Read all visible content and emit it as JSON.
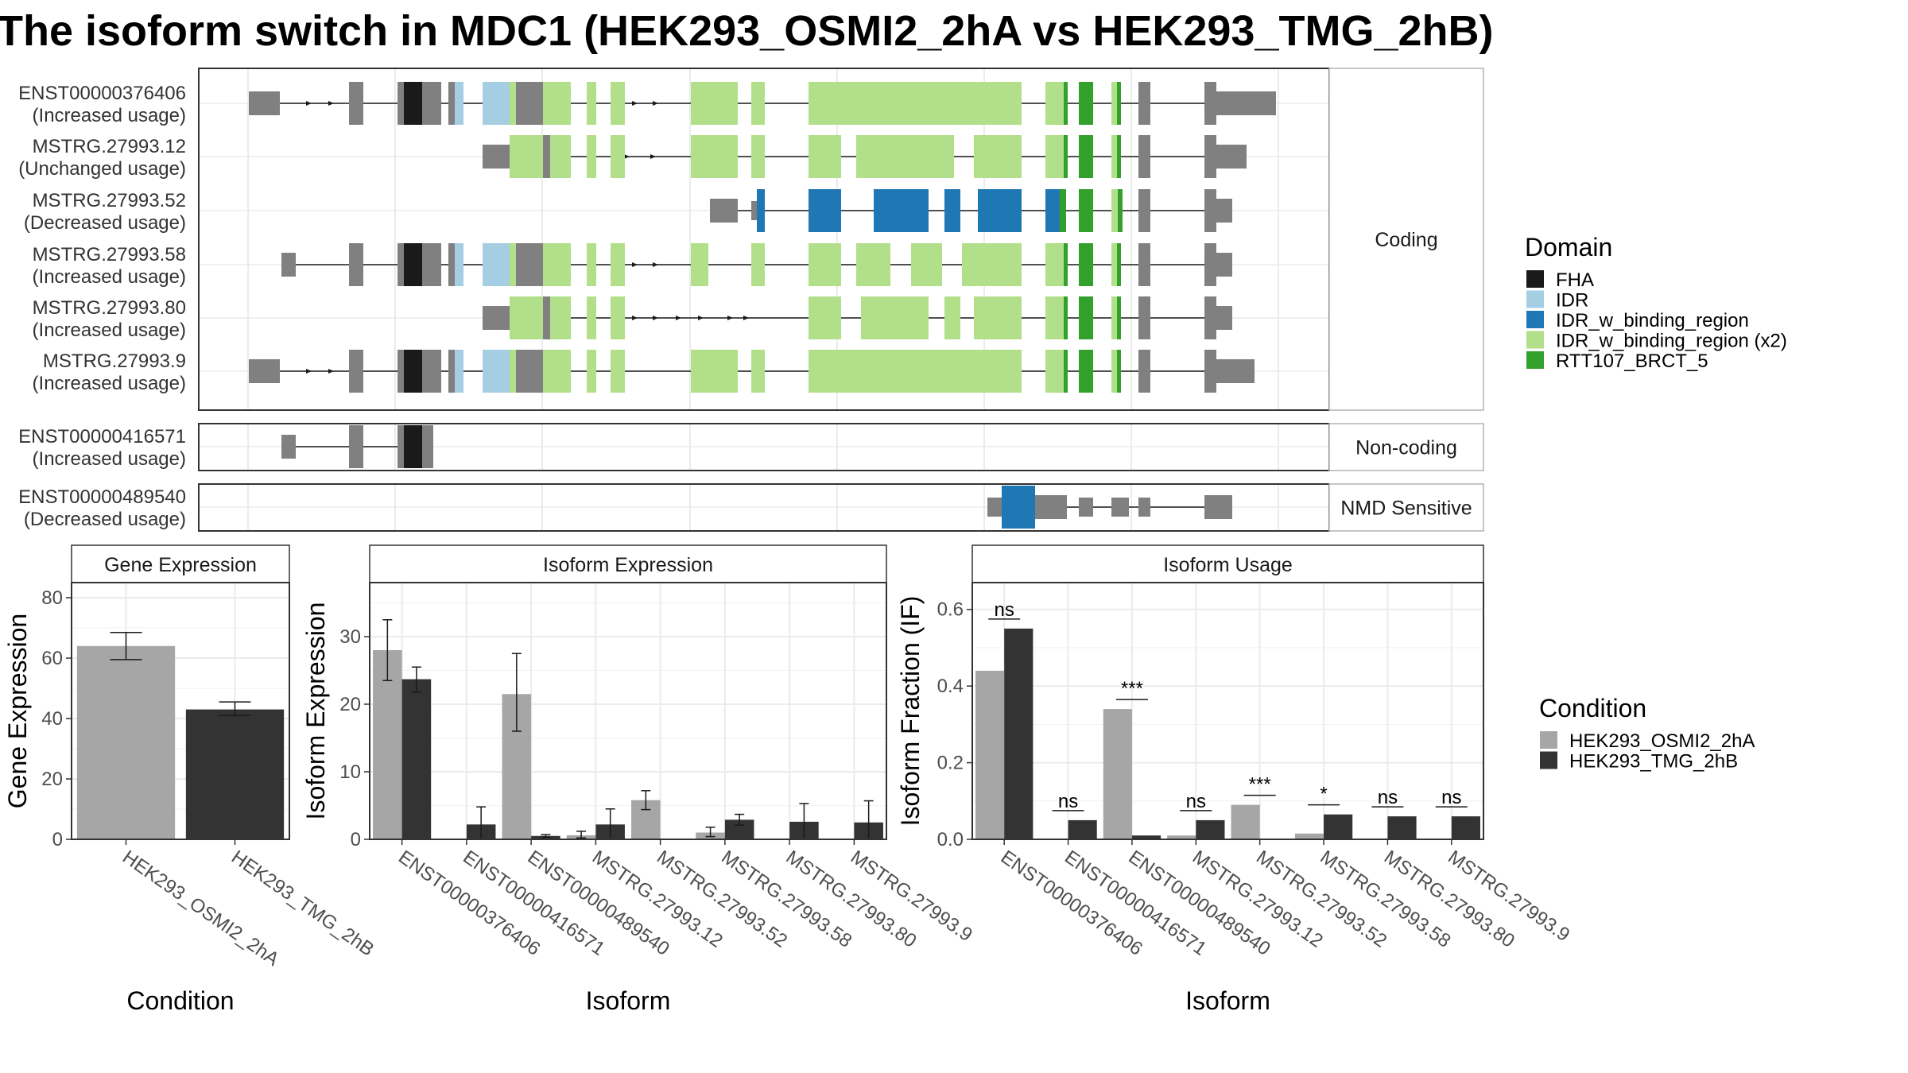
{
  "title": "The isoform switch in MDC1 (HEK293_OSMI2_2hA vs HEK293_TMG_2hB)",
  "chart_data": [
    {
      "type": "gene-structure",
      "groups": [
        {
          "label": "Coding",
          "transcripts": [
            {
              "id": "ENST00000376406",
              "usage": "(Increased usage)"
            },
            {
              "id": "MSTRG.27993.12",
              "usage": "(Unchanged usage)"
            },
            {
              "id": "MSTRG.27993.52",
              "usage": "(Decreased usage)"
            },
            {
              "id": "MSTRG.27993.58",
              "usage": "(Increased usage)"
            },
            {
              "id": "MSTRG.27993.80",
              "usage": "(Increased usage)"
            },
            {
              "id": "MSTRG.27993.9",
              "usage": "(Increased usage)"
            }
          ]
        },
        {
          "label": "Non-coding",
          "transcripts": [
            {
              "id": "ENST00000416571",
              "usage": "(Increased usage)"
            }
          ]
        },
        {
          "label": "NMD Sensitive",
          "transcripts": [
            {
              "id": "ENST00000489540",
              "usage": "(Decreased usage)"
            }
          ]
        }
      ],
      "legend_title": "Domain",
      "legend": [
        {
          "name": "FHA",
          "color": "#1a1a1a"
        },
        {
          "name": "IDR",
          "color": "#a6cee3"
        },
        {
          "name": "IDR_w_binding_region",
          "color": "#1f78b4"
        },
        {
          "name": "IDR_w_binding_region (x2)",
          "color": "#b2df8a"
        },
        {
          "name": "RTT107_BRCT_5",
          "color": "#33a02c"
        }
      ]
    },
    {
      "type": "bar",
      "title": "Gene Expression",
      "xlabel": "Condition",
      "ylabel": "Gene Expression",
      "ylim": [
        0,
        85
      ],
      "yticks": [
        0,
        20,
        40,
        60,
        80
      ],
      "categories": [
        "HEK293_OSMI2_2hA",
        "HEK293_TMG_2hB"
      ],
      "values": [
        64,
        43
      ],
      "errors": [
        [
          59.5,
          68.5
        ],
        [
          41,
          45.5
        ]
      ],
      "colors": [
        "#a6a6a6",
        "#333333"
      ]
    },
    {
      "type": "bar",
      "title": "Isoform Expression",
      "xlabel": "Isoform",
      "ylabel": "Isoform Expression",
      "ylim": [
        0,
        38
      ],
      "yticks": [
        0,
        10,
        20,
        30
      ],
      "categories": [
        "ENST00000376406",
        "ENST00000416571",
        "ENST00000489540",
        "MSTRG.27993.12",
        "MSTRG.27993.52",
        "MSTRG.27993.58",
        "MSTRG.27993.80",
        "MSTRG.27993.9"
      ],
      "series": [
        {
          "name": "HEK293_OSMI2_2hA",
          "values": [
            28,
            0,
            21.5,
            0.6,
            5.8,
            1.0,
            0,
            0
          ],
          "errors": [
            [
              23.5,
              32.5
            ],
            null,
            [
              16,
              27.5
            ],
            [
              0.2,
              1.2
            ],
            [
              4.4,
              7.2
            ],
            [
              0.4,
              1.8
            ],
            null,
            null
          ]
        },
        {
          "name": "HEK293_TMG_2hB",
          "values": [
            23.7,
            2.2,
            0.5,
            2.2,
            0,
            2.9,
            2.6,
            2.5
          ],
          "errors": [
            [
              21.8,
              25.5
            ],
            [
              0,
              4.8
            ],
            [
              0.3,
              0.7
            ],
            [
              0,
              4.5
            ],
            null,
            [
              2.1,
              3.7
            ],
            [
              0,
              5.3
            ],
            [
              0,
              5.7
            ]
          ]
        }
      ]
    },
    {
      "type": "bar",
      "title": "Isoform Usage",
      "xlabel": "Isoform",
      "ylabel": "Isoform Fraction (IF)",
      "ylim": [
        0,
        0.67
      ],
      "yticks": [
        0.0,
        0.2,
        0.4,
        0.6
      ],
      "ytick_labels": [
        "0.0",
        "0.2",
        "0.4",
        "0.6"
      ],
      "categories": [
        "ENST00000376406",
        "ENST00000416571",
        "ENST00000489540",
        "MSTRG.27993.12",
        "MSTRG.27993.52",
        "MSTRG.27993.58",
        "MSTRG.27993.80",
        "MSTRG.27993.9"
      ],
      "series": [
        {
          "name": "HEK293_OSMI2_2hA",
          "values": [
            0.44,
            0,
            0.34,
            0.01,
            0.09,
            0.015,
            0,
            0
          ]
        },
        {
          "name": "HEK293_TMG_2hB",
          "values": [
            0.55,
            0.05,
            0.01,
            0.05,
            0,
            0.065,
            0.06,
            0.06
          ]
        }
      ],
      "significance": [
        "ns",
        "ns",
        "***",
        "ns",
        "***",
        "*",
        "ns",
        "ns"
      ]
    }
  ],
  "condition_legend": {
    "title": "Condition",
    "items": [
      {
        "name": "HEK293_OSMI2_2hA",
        "color": "#a6a6a6"
      },
      {
        "name": "HEK293_TMG_2hB",
        "color": "#333333"
      }
    ]
  }
}
